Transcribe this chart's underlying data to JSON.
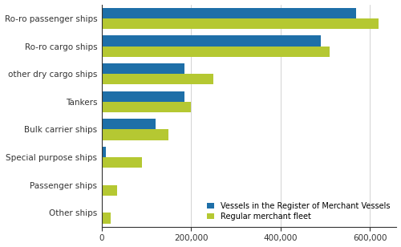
{
  "categories": [
    "Ro-ro passenger ships",
    "Ro-ro cargo ships",
    "other dry cargo ships",
    "Tankers",
    "Bulk carrier ships",
    "Special purpose ships",
    "Passenger ships",
    "Other ships"
  ],
  "register_values": [
    570000,
    490000,
    185000,
    185000,
    120000,
    10000,
    1000,
    1000
  ],
  "fleet_values": [
    620000,
    510000,
    250000,
    200000,
    150000,
    90000,
    35000,
    20000
  ],
  "register_color": "#1e6fa8",
  "fleet_color": "#b5c832",
  "legend_labels": [
    "Vessels in the Register of Merchant Vessels",
    "Regular merchant fleet"
  ],
  "xlim": [
    0,
    660000
  ],
  "xticks": [
    0,
    200000,
    400000,
    600000
  ],
  "bar_height": 0.38,
  "background_color": "#ffffff"
}
